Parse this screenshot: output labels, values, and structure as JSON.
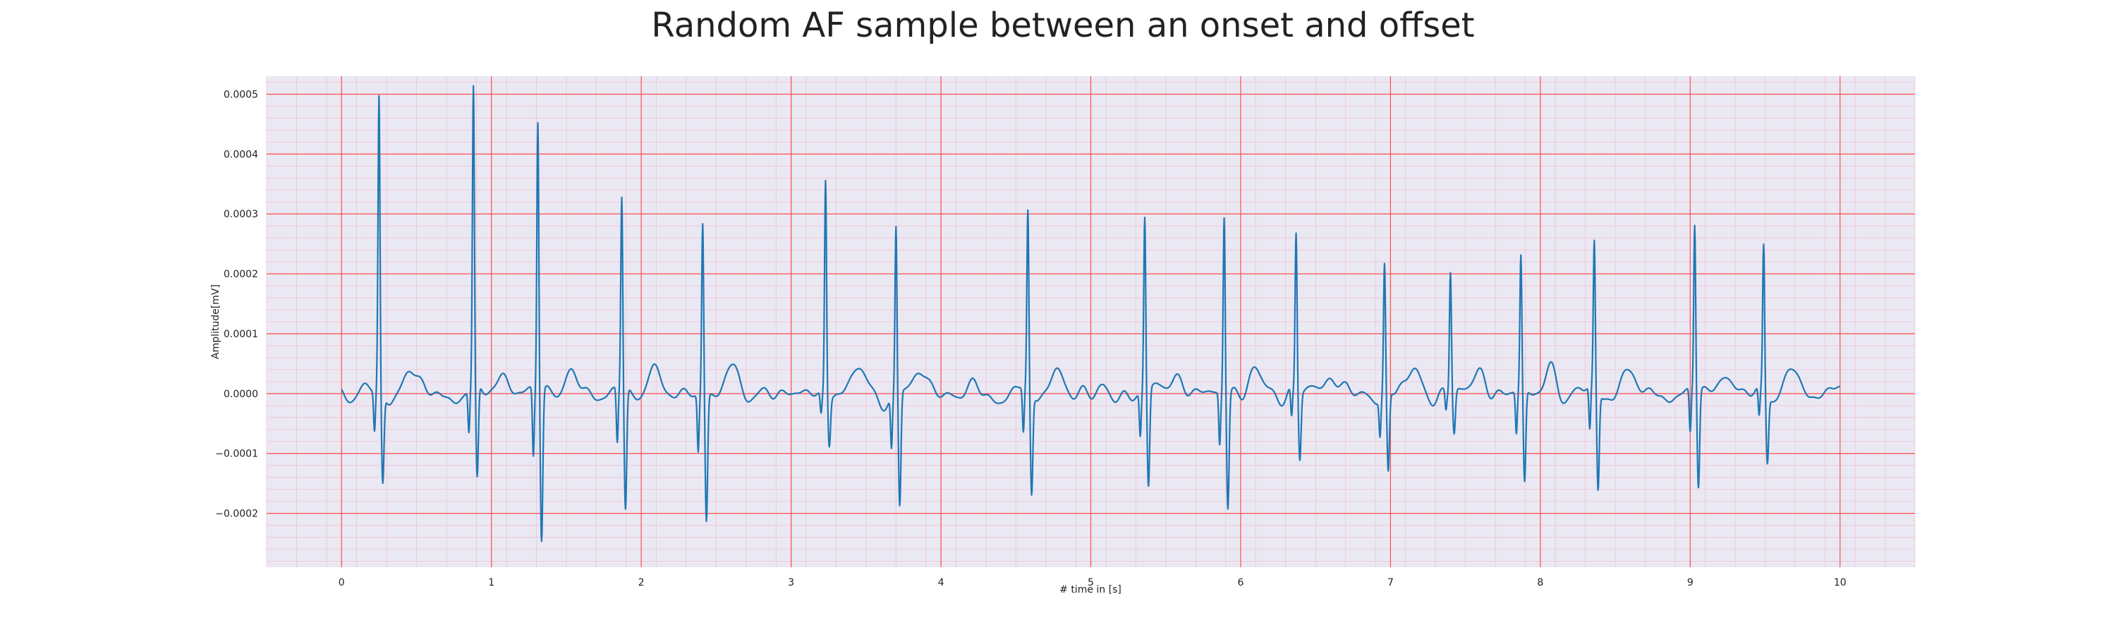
{
  "chart_data": {
    "type": "line",
    "title": "Random AF sample between an onset and offset",
    "xlabel": "# time in [s]",
    "ylabel": "Amplitude[mV]",
    "xlim": [
      -0.5,
      10.5
    ],
    "ylim": [
      -0.00029,
      0.00053
    ],
    "x_ticks": [
      0,
      1,
      2,
      3,
      4,
      5,
      6,
      7,
      8,
      9,
      10
    ],
    "x_tick_labels": [
      "0",
      "1",
      "2",
      "3",
      "4",
      "5",
      "6",
      "7",
      "8",
      "9",
      "10"
    ],
    "y_ticks": [
      -0.0002,
      -0.0001,
      0.0,
      0.0001,
      0.0002,
      0.0003,
      0.0004,
      0.0005
    ],
    "y_tick_labels": [
      "−0.0002",
      "−0.0001",
      "0.0000",
      "0.0001",
      "0.0002",
      "0.0003",
      "0.0004",
      "0.0005"
    ],
    "grid": {
      "major": true,
      "minor": true,
      "color": "#ff4d4d",
      "background": "#eae8f3"
    },
    "beats": [
      {
        "t": 0.25,
        "peak": 0.00049,
        "trough": -0.00015
      },
      {
        "t": 0.88,
        "peak": 0.000495,
        "trough": -0.00016
      },
      {
        "t": 1.31,
        "peak": 0.000455,
        "trough": -0.00025
      },
      {
        "t": 1.87,
        "peak": 0.000325,
        "trough": -0.0002
      },
      {
        "t": 2.41,
        "peak": 0.00029,
        "trough": -0.00021
      },
      {
        "t": 3.23,
        "peak": 0.00036,
        "trough": -8e-05
      },
      {
        "t": 3.7,
        "peak": 0.00028,
        "trough": -0.00019
      },
      {
        "t": 4.58,
        "peak": 0.000295,
        "trough": -0.00017
      },
      {
        "t": 5.36,
        "peak": 0.000295,
        "trough": -0.00016
      },
      {
        "t": 5.89,
        "peak": 0.0003,
        "trough": -0.00019
      },
      {
        "t": 6.37,
        "peak": 0.000265,
        "trough": -0.00011
      },
      {
        "t": 6.96,
        "peak": 0.000215,
        "trough": -0.000135
      },
      {
        "t": 7.4,
        "peak": 0.000205,
        "trough": -7e-05
      },
      {
        "t": 7.87,
        "peak": 0.000225,
        "trough": -0.000155
      },
      {
        "t": 8.36,
        "peak": 0.00024,
        "trough": -0.000165
      },
      {
        "t": 9.03,
        "peak": 0.00028,
        "trough": -0.00016
      },
      {
        "t": 9.49,
        "peak": 0.000245,
        "trough": -0.00011
      }
    ],
    "series": [
      {
        "color": "#1f77b4",
        "x_start": 0.0,
        "x_end": 10.0,
        "baseline_amplitude": 3e-05
      }
    ]
  }
}
